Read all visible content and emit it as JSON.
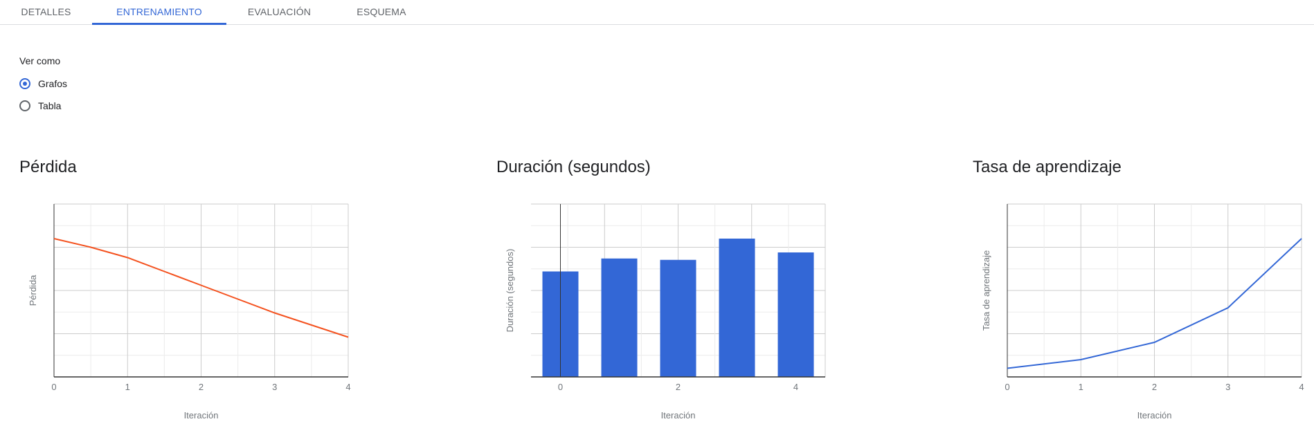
{
  "tabs": [
    {
      "label": "DETALLES",
      "active": false
    },
    {
      "label": "ENTRENAMIENTO",
      "active": true
    },
    {
      "label": "EVALUACIÓN",
      "active": false
    },
    {
      "label": "ESQUEMA",
      "active": false
    }
  ],
  "view": {
    "label": "Ver como",
    "options": [
      {
        "label": "Grafos",
        "selected": true
      },
      {
        "label": "Tabla",
        "selected": false
      }
    ]
  },
  "colors": {
    "accent": "#3367d6",
    "loss_line": "#f4511e",
    "bars": "#3367d6",
    "lr_line": "#3367d6"
  },
  "chart_data": [
    {
      "type": "line",
      "title": "Pérdida",
      "xlabel": "Iteración",
      "ylabel": "Pérdida",
      "x": [
        0,
        0.5,
        1,
        1.5,
        2,
        2.5,
        3,
        3.5,
        4
      ],
      "x_ticks": [
        0,
        1,
        2,
        3,
        4
      ],
      "series": [
        {
          "values": [
            0.8,
            0.75,
            0.69,
            0.61,
            0.53,
            0.45,
            0.37,
            0.3,
            0.23
          ]
        }
      ],
      "xlim": [
        0,
        4
      ],
      "ylim": [
        0,
        1
      ],
      "grid": true
    },
    {
      "type": "bar",
      "title": "Duración (segundos)",
      "xlabel": "Iteración",
      "ylabel": "Duración (segundos)",
      "categories": [
        0,
        1,
        2,
        3,
        4
      ],
      "x_ticks": [
        0,
        2,
        4
      ],
      "values": [
        0.61,
        0.685,
        0.677,
        0.8,
        0.72
      ],
      "xlim": [
        -0.5,
        4.5
      ],
      "ylim": [
        0,
        1
      ],
      "grid": true
    },
    {
      "type": "line",
      "title": "Tasa de aprendizaje",
      "xlabel": "Iteración",
      "ylabel": "Tasa de aprendizaje",
      "x": [
        0,
        1,
        2,
        3,
        4
      ],
      "x_ticks": [
        0,
        1,
        2,
        3,
        4
      ],
      "series": [
        {
          "values": [
            0.05,
            0.1,
            0.2,
            0.4,
            0.8
          ]
        }
      ],
      "xlim": [
        0,
        4
      ],
      "ylim": [
        0,
        1
      ],
      "grid": true
    }
  ]
}
